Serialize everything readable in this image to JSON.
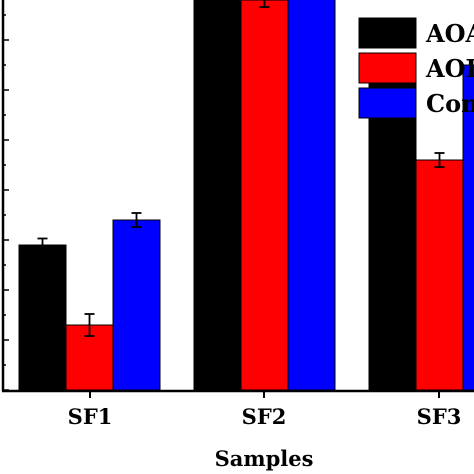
{
  "chart_data": {
    "type": "bar",
    "xlabel": "Samples",
    "ylabel": "",
    "categories": [
      "SF1",
      "SF2",
      "SF3"
    ],
    "ylim": [
      0,
      100
    ],
    "grid": false,
    "legend_position": "top-right",
    "series": [
      {
        "name": "AOA",
        "color": "#000000",
        "values": [
          29,
          81,
          63
        ],
        "errors": [
          1.3,
          1.8,
          0.8
        ]
      },
      {
        "name": "AOB",
        "color": "#ff0000",
        "values": [
          13,
          78,
          46
        ],
        "errors": [
          2.2,
          1.4,
          1.4
        ]
      },
      {
        "name": "Com",
        "color": "#0000ff",
        "values": [
          34,
          83,
          65
        ],
        "errors": [
          1.4,
          1.0,
          0.8
        ]
      }
    ]
  }
}
